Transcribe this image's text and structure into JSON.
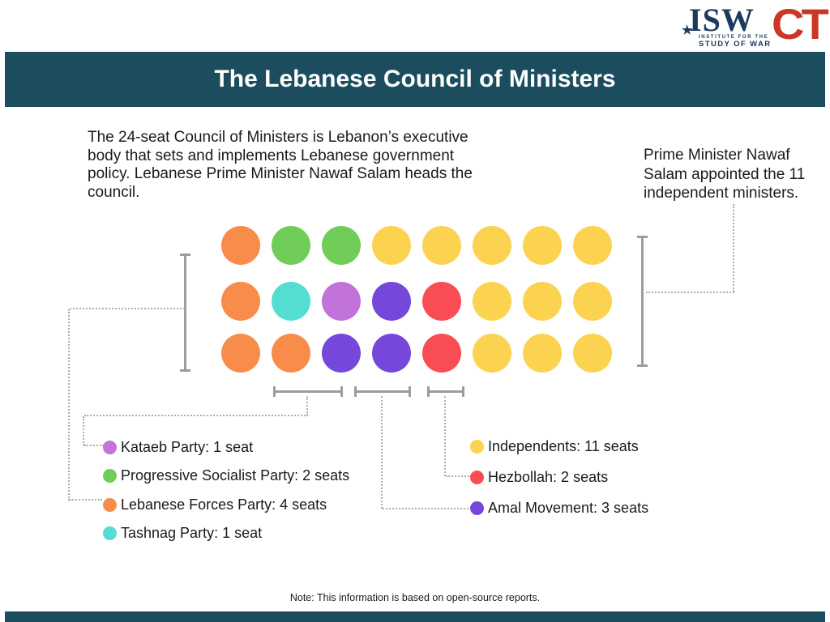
{
  "logos": {
    "isw": {
      "text": "ISW",
      "tagline_line1": "INSTITUTE FOR THE",
      "tagline_line2": "STUDY OF WAR",
      "color": "#1b3a5d"
    },
    "ct": {
      "text": "CT",
      "color": "#cb3627"
    }
  },
  "header": {
    "title": "The Lebanese Council of Ministers",
    "bg_color": "#1b4d5f",
    "text_color": "#ffffff"
  },
  "intro": {
    "text": "The 24-seat Council of Ministers is Lebanon’s executive body that sets and implements Lebanese government policy. Lebanese Prime Minister Nawaf Salam heads the council."
  },
  "callout": {
    "text": "Prime Minister Nawaf Salam appointed the 11 independent ministers."
  },
  "chart_data": {
    "type": "waffle",
    "title": "The Lebanese Council of Ministers",
    "total_seats": 24,
    "rows": 3,
    "cols": 8,
    "grid": [
      [
        "lebanese_forces",
        "psp",
        "psp",
        "independent",
        "independent",
        "independent",
        "independent",
        "independent"
      ],
      [
        "lebanese_forces",
        "tashnag",
        "kataeb",
        "amal",
        "hezbollah",
        "independent",
        "independent",
        "independent"
      ],
      [
        "lebanese_forces",
        "lebanese_forces",
        "amal",
        "amal",
        "hezbollah",
        "independent",
        "independent",
        "independent"
      ]
    ],
    "colors": {
      "lebanese_forces": "#F78C4B",
      "psp": "#70CD58",
      "independent": "#FBD351",
      "tashnag": "#55DDD2",
      "kataeb": "#C173D9",
      "amal": "#7547DA",
      "hezbollah": "#F94D53"
    },
    "parties": [
      {
        "name": "Kataeb Party",
        "seats": 1
      },
      {
        "name": "Progressive Socialist Party",
        "seats": 2
      },
      {
        "name": "Lebanese Forces Party",
        "seats": 4
      },
      {
        "name": "Tashnag Party",
        "seats": 1
      },
      {
        "name": "Independents",
        "seats": 11
      },
      {
        "name": "Hezbollah",
        "seats": 2
      },
      {
        "name": "Amal Movement",
        "seats": 3
      }
    ]
  },
  "legend": {
    "left": [
      {
        "label": "Kataeb Party: 1 seat",
        "color": "#C173D9"
      },
      {
        "label": "Progressive Socialist Party: 2 seats",
        "color": "#70CD58"
      },
      {
        "label": "Lebanese Forces Party: 4 seats",
        "color": "#F78C4B"
      },
      {
        "label": "Tashnag Party: 1 seat",
        "color": "#55DDD2"
      }
    ],
    "right": [
      {
        "label": "Independents: 11 seats",
        "color": "#FBD351"
      },
      {
        "label": "Hezbollah: 2 seats",
        "color": "#F94D53"
      },
      {
        "label": "Amal Movement: 3 seats",
        "color": "#7547DA"
      }
    ]
  },
  "note": {
    "text": "Note: This information is based on open-source reports."
  }
}
